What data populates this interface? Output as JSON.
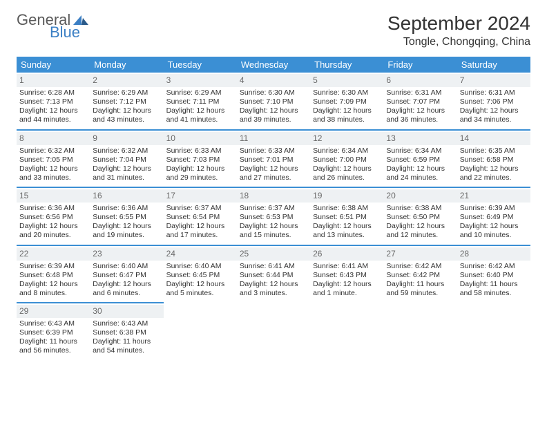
{
  "logo": {
    "word1": "General",
    "word2": "Blue"
  },
  "title": "September 2024",
  "location": "Tongle, Chongqing, China",
  "colors": {
    "header_bg": "#3b8fd4",
    "header_text": "#ffffff",
    "daynum_bg": "#eef1f3",
    "daynum_text": "#6a6a6a",
    "border": "#3b8fd4",
    "logo_gray": "#5a5a5a",
    "logo_blue": "#3b7fc4",
    "body_text": "#333333",
    "background": "#ffffff"
  },
  "font": {
    "family": "Arial",
    "cell_size_pt": 8,
    "header_size_pt": 10,
    "title_size_pt": 21,
    "location_size_pt": 12
  },
  "weekdays": [
    "Sunday",
    "Monday",
    "Tuesday",
    "Wednesday",
    "Thursday",
    "Friday",
    "Saturday"
  ],
  "weeks": [
    [
      {
        "day": "1",
        "sunrise": "Sunrise: 6:28 AM",
        "sunset": "Sunset: 7:13 PM",
        "dl1": "Daylight: 12 hours",
        "dl2": "and 44 minutes."
      },
      {
        "day": "2",
        "sunrise": "Sunrise: 6:29 AM",
        "sunset": "Sunset: 7:12 PM",
        "dl1": "Daylight: 12 hours",
        "dl2": "and 43 minutes."
      },
      {
        "day": "3",
        "sunrise": "Sunrise: 6:29 AM",
        "sunset": "Sunset: 7:11 PM",
        "dl1": "Daylight: 12 hours",
        "dl2": "and 41 minutes."
      },
      {
        "day": "4",
        "sunrise": "Sunrise: 6:30 AM",
        "sunset": "Sunset: 7:10 PM",
        "dl1": "Daylight: 12 hours",
        "dl2": "and 39 minutes."
      },
      {
        "day": "5",
        "sunrise": "Sunrise: 6:30 AM",
        "sunset": "Sunset: 7:09 PM",
        "dl1": "Daylight: 12 hours",
        "dl2": "and 38 minutes."
      },
      {
        "day": "6",
        "sunrise": "Sunrise: 6:31 AM",
        "sunset": "Sunset: 7:07 PM",
        "dl1": "Daylight: 12 hours",
        "dl2": "and 36 minutes."
      },
      {
        "day": "7",
        "sunrise": "Sunrise: 6:31 AM",
        "sunset": "Sunset: 7:06 PM",
        "dl1": "Daylight: 12 hours",
        "dl2": "and 34 minutes."
      }
    ],
    [
      {
        "day": "8",
        "sunrise": "Sunrise: 6:32 AM",
        "sunset": "Sunset: 7:05 PM",
        "dl1": "Daylight: 12 hours",
        "dl2": "and 33 minutes."
      },
      {
        "day": "9",
        "sunrise": "Sunrise: 6:32 AM",
        "sunset": "Sunset: 7:04 PM",
        "dl1": "Daylight: 12 hours",
        "dl2": "and 31 minutes."
      },
      {
        "day": "10",
        "sunrise": "Sunrise: 6:33 AM",
        "sunset": "Sunset: 7:03 PM",
        "dl1": "Daylight: 12 hours",
        "dl2": "and 29 minutes."
      },
      {
        "day": "11",
        "sunrise": "Sunrise: 6:33 AM",
        "sunset": "Sunset: 7:01 PM",
        "dl1": "Daylight: 12 hours",
        "dl2": "and 27 minutes."
      },
      {
        "day": "12",
        "sunrise": "Sunrise: 6:34 AM",
        "sunset": "Sunset: 7:00 PM",
        "dl1": "Daylight: 12 hours",
        "dl2": "and 26 minutes."
      },
      {
        "day": "13",
        "sunrise": "Sunrise: 6:34 AM",
        "sunset": "Sunset: 6:59 PM",
        "dl1": "Daylight: 12 hours",
        "dl2": "and 24 minutes."
      },
      {
        "day": "14",
        "sunrise": "Sunrise: 6:35 AM",
        "sunset": "Sunset: 6:58 PM",
        "dl1": "Daylight: 12 hours",
        "dl2": "and 22 minutes."
      }
    ],
    [
      {
        "day": "15",
        "sunrise": "Sunrise: 6:36 AM",
        "sunset": "Sunset: 6:56 PM",
        "dl1": "Daylight: 12 hours",
        "dl2": "and 20 minutes."
      },
      {
        "day": "16",
        "sunrise": "Sunrise: 6:36 AM",
        "sunset": "Sunset: 6:55 PM",
        "dl1": "Daylight: 12 hours",
        "dl2": "and 19 minutes."
      },
      {
        "day": "17",
        "sunrise": "Sunrise: 6:37 AM",
        "sunset": "Sunset: 6:54 PM",
        "dl1": "Daylight: 12 hours",
        "dl2": "and 17 minutes."
      },
      {
        "day": "18",
        "sunrise": "Sunrise: 6:37 AM",
        "sunset": "Sunset: 6:53 PM",
        "dl1": "Daylight: 12 hours",
        "dl2": "and 15 minutes."
      },
      {
        "day": "19",
        "sunrise": "Sunrise: 6:38 AM",
        "sunset": "Sunset: 6:51 PM",
        "dl1": "Daylight: 12 hours",
        "dl2": "and 13 minutes."
      },
      {
        "day": "20",
        "sunrise": "Sunrise: 6:38 AM",
        "sunset": "Sunset: 6:50 PM",
        "dl1": "Daylight: 12 hours",
        "dl2": "and 12 minutes."
      },
      {
        "day": "21",
        "sunrise": "Sunrise: 6:39 AM",
        "sunset": "Sunset: 6:49 PM",
        "dl1": "Daylight: 12 hours",
        "dl2": "and 10 minutes."
      }
    ],
    [
      {
        "day": "22",
        "sunrise": "Sunrise: 6:39 AM",
        "sunset": "Sunset: 6:48 PM",
        "dl1": "Daylight: 12 hours",
        "dl2": "and 8 minutes."
      },
      {
        "day": "23",
        "sunrise": "Sunrise: 6:40 AM",
        "sunset": "Sunset: 6:47 PM",
        "dl1": "Daylight: 12 hours",
        "dl2": "and 6 minutes."
      },
      {
        "day": "24",
        "sunrise": "Sunrise: 6:40 AM",
        "sunset": "Sunset: 6:45 PM",
        "dl1": "Daylight: 12 hours",
        "dl2": "and 5 minutes."
      },
      {
        "day": "25",
        "sunrise": "Sunrise: 6:41 AM",
        "sunset": "Sunset: 6:44 PM",
        "dl1": "Daylight: 12 hours",
        "dl2": "and 3 minutes."
      },
      {
        "day": "26",
        "sunrise": "Sunrise: 6:41 AM",
        "sunset": "Sunset: 6:43 PM",
        "dl1": "Daylight: 12 hours",
        "dl2": "and 1 minute."
      },
      {
        "day": "27",
        "sunrise": "Sunrise: 6:42 AM",
        "sunset": "Sunset: 6:42 PM",
        "dl1": "Daylight: 11 hours",
        "dl2": "and 59 minutes."
      },
      {
        "day": "28",
        "sunrise": "Sunrise: 6:42 AM",
        "sunset": "Sunset: 6:40 PM",
        "dl1": "Daylight: 11 hours",
        "dl2": "and 58 minutes."
      }
    ],
    [
      {
        "day": "29",
        "sunrise": "Sunrise: 6:43 AM",
        "sunset": "Sunset: 6:39 PM",
        "dl1": "Daylight: 11 hours",
        "dl2": "and 56 minutes."
      },
      {
        "day": "30",
        "sunrise": "Sunrise: 6:43 AM",
        "sunset": "Sunset: 6:38 PM",
        "dl1": "Daylight: 11 hours",
        "dl2": "and 54 minutes."
      },
      null,
      null,
      null,
      null,
      null
    ]
  ]
}
